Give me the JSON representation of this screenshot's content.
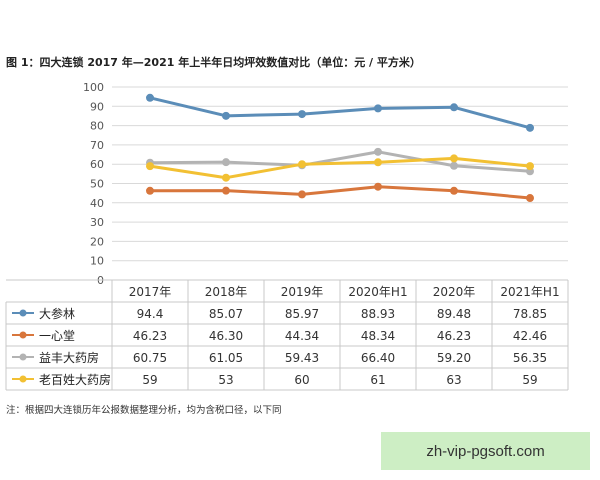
{
  "title": "图 1：四大连锁 2017 年—2021 年上半年日均坪效数值对比（单位：元 / 平方米）",
  "note": "注：根据四大连锁历年公报数据整理分析，均为含税口径，以下同",
  "watermark": "zh-vip-pgsoft.com",
  "chart_data": {
    "type": "line",
    "title": "图 1：四大连锁 2017 年—2021 年上半年日均坪效数值对比（单位：元 / 平方米）",
    "categories": [
      "2017年",
      "2018年",
      "2019年",
      "2020年H1",
      "2020年",
      "2021年H1"
    ],
    "ylim": [
      0,
      100
    ],
    "yticks": [
      0,
      10,
      20,
      30,
      40,
      50,
      60,
      70,
      80,
      90,
      100
    ],
    "grid": true,
    "legend": "left-table",
    "series": [
      {
        "name": "大参林",
        "color": "#5b8db8",
        "values": [
          94.4,
          85.07,
          85.97,
          88.93,
          89.48,
          78.85
        ],
        "labels": [
          "94.4",
          "85.07",
          "85.97",
          "88.93",
          "89.48",
          "78.85"
        ]
      },
      {
        "name": "一心堂",
        "color": "#d8763c",
        "values": [
          46.23,
          46.3,
          44.34,
          48.34,
          46.23,
          42.46
        ],
        "labels": [
          "46.23",
          "46.30",
          "44.34",
          "48.34",
          "46.23",
          "42.46"
        ]
      },
      {
        "name": "益丰大药房",
        "color": "#b3b3b3",
        "values": [
          60.75,
          61.05,
          59.43,
          66.4,
          59.2,
          56.35
        ],
        "labels": [
          "60.75",
          "61.05",
          "59.43",
          "66.40",
          "59.20",
          "56.35"
        ]
      },
      {
        "name": "老百姓大药房",
        "color": "#f2c033",
        "values": [
          59,
          53,
          60,
          61,
          63,
          59
        ],
        "labels": [
          "59",
          "53",
          "60",
          "61",
          "63",
          "59"
        ]
      }
    ]
  }
}
